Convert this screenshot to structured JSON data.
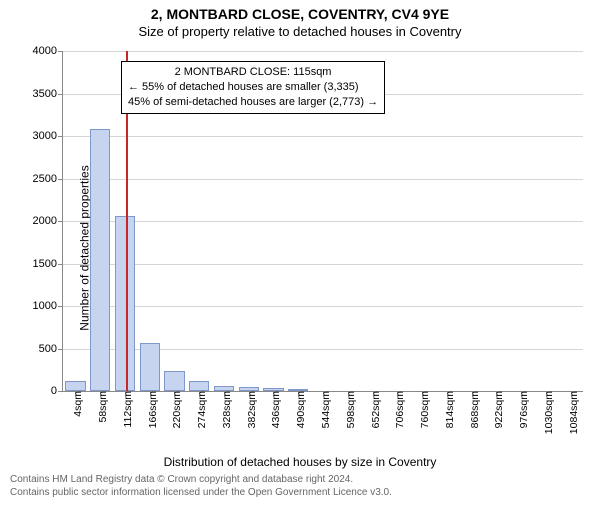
{
  "title_main": "2, MONTBARD CLOSE, COVENTRY, CV4 9YE",
  "title_sub": "Size of property relative to detached houses in Coventry",
  "ylabel": "Number of detached properties",
  "xlabel": "Distribution of detached houses by size in Coventry",
  "footer_line1": "Contains HM Land Registry data © Crown copyright and database right 2024.",
  "footer_line2": "Contains public sector information licensed under the Open Government Licence v3.0.",
  "chart": {
    "type": "bar",
    "background_color": "#ffffff",
    "grid_color": "#888888",
    "bar_fill": "#c7d4ef",
    "bar_border": "#7f98c9",
    "ref_line_color": "#c62828",
    "ylim": [
      0,
      4000
    ],
    "ytick_step": 500,
    "yticks": [
      0,
      500,
      1000,
      1500,
      2000,
      2500,
      3000,
      3500,
      4000
    ],
    "x_categories": [
      "4sqm",
      "58sqm",
      "112sqm",
      "166sqm",
      "220sqm",
      "274sqm",
      "328sqm",
      "382sqm",
      "436sqm",
      "490sqm",
      "544sqm",
      "598sqm",
      "652sqm",
      "706sqm",
      "760sqm",
      "814sqm",
      "868sqm",
      "922sqm",
      "976sqm",
      "1030sqm",
      "1084sqm"
    ],
    "values": [
      120,
      3080,
      2060,
      560,
      240,
      120,
      60,
      50,
      40,
      25,
      0,
      0,
      0,
      0,
      0,
      0,
      0,
      0,
      0,
      0,
      0
    ],
    "ref_line_x_value": 115,
    "x_min": 4,
    "x_step": 54,
    "annotation": {
      "line1": "2 MONTBARD CLOSE: 115sqm",
      "line2": "← 55% of detached houses are smaller (3,335)",
      "line3": "45% of semi-detached houses are larger (2,773) →"
    },
    "title_fontsize": 14,
    "label_fontsize": 12,
    "tick_fontsize": 11
  }
}
